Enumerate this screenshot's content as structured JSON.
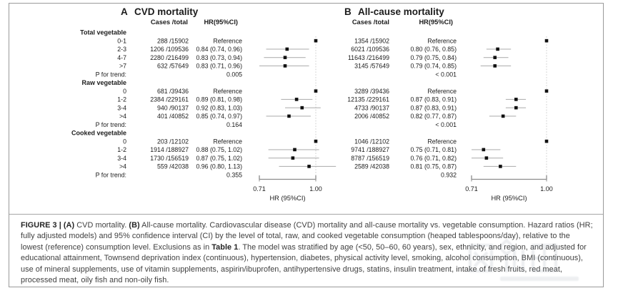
{
  "figure": {
    "caption": {
      "segments": [
        {
          "text": "FIGURE 3 | ",
          "bold": true
        },
        {
          "text": "(A)",
          "bold": true
        },
        {
          "text": " CVD mortality. ",
          "bold": false
        },
        {
          "text": "(B)",
          "bold": true
        },
        {
          "text": " All-cause mortality. Cardiovascular disease (CVD) mortality and all-cause mortality vs. vegetable consumption. Hazard ratios (HR; fully adjusted models) and 95% confidence interval (CI) by the level of total, raw, and cooked vegetable consumption (heaped tablespoons/day), relative to the lowest (reference) consumption level. Exclusions as in ",
          "bold": false
        },
        {
          "text": "Table 1",
          "bold": true
        },
        {
          "text": ". The model was stratified by age (<50, 50–60, 60 years), sex, ethnicity, and region, and adjusted for educational attainment, Townsend deprivation index (continuous), hypertension, diabetes, physical activity level, smoking, alcohol consumption, BMI (continuous), use of mineral supplements, use of vitamin supplements, aspirin/ibuprofen, antihypertensive drugs, statins, insulin treatment, intake of fresh fruits, red meat, processed meat, oily fish and non-oily fish.",
          "bold": false
        }
      ]
    },
    "watermark_name": "faint-logo-watermark"
  },
  "colors": {
    "text": "#1c1c1c",
    "marker": "#111111",
    "ci_line": "#b3b3b3",
    "ref_line": "#cccccc",
    "axis": "#8c8c8c",
    "border": "#9a9a9a"
  },
  "chart_data": [
    {
      "type": "forest",
      "panel_label": "A",
      "title": "CVD mortality",
      "columns": [
        "Cases /total",
        "HR(95%CI)"
      ],
      "show_row_labels": true,
      "p_row_label": "P for trend:",
      "axis": {
        "scale": "log",
        "min": 0.71,
        "max": 1.0,
        "ticks": [
          {
            "value": 0.71,
            "label": "0.71"
          },
          {
            "value": 1.0,
            "label": "1.00"
          }
        ],
        "label": "HR (95%CI)",
        "reference_line": 1.0
      },
      "groups": [
        {
          "name": "Total vegetable",
          "rows": [
            {
              "label": "0-1",
              "cases": "288 /15902",
              "hr_text": "Reference",
              "ref": true
            },
            {
              "label": "2-3",
              "cases": "1206 /109536",
              "hr_text": "0.84 (0.74, 0.96)",
              "hr": 0.84,
              "lo": 0.74,
              "hi": 0.96
            },
            {
              "label": "4-7",
              "cases": "2280 /216499",
              "hr_text": "0.83 (0.73, 0.94)",
              "hr": 0.83,
              "lo": 0.73,
              "hi": 0.94
            },
            {
              "label": ">7",
              "cases": "632 /57649",
              "hr_text": "0.83 (0.71, 0.96)",
              "hr": 0.83,
              "lo": 0.71,
              "hi": 0.96
            }
          ],
          "p_value": "0.005"
        },
        {
          "name": "Raw vegetable",
          "rows": [
            {
              "label": "0",
              "cases": "681 /39436",
              "hr_text": "Reference",
              "ref": true
            },
            {
              "label": "1-2",
              "cases": "2384 /229161",
              "hr_text": "0.89 (0.81, 0.98)",
              "hr": 0.89,
              "lo": 0.81,
              "hi": 0.98
            },
            {
              "label": "3-4",
              "cases": "940 /90137",
              "hr_text": "0.92 (0.83, 1.03)",
              "hr": 0.92,
              "lo": 0.83,
              "hi": 1.03
            },
            {
              "label": ">4",
              "cases": "401 /40852",
              "hr_text": "0.85 (0.74, 0.97)",
              "hr": 0.85,
              "lo": 0.74,
              "hi": 0.97
            }
          ],
          "p_value": "0.164"
        },
        {
          "name": "Cooked vegetable",
          "rows": [
            {
              "label": "0",
              "cases": "203 /12102",
              "hr_text": "Reference",
              "ref": true
            },
            {
              "label": "1-2",
              "cases": "1914 /188927",
              "hr_text": "0.88 (0.75, 1.02)",
              "hr": 0.88,
              "lo": 0.75,
              "hi": 1.02
            },
            {
              "label": "3-4",
              "cases": "1730 /156519",
              "hr_text": "0.87 (0.75, 1.02)",
              "hr": 0.87,
              "lo": 0.75,
              "hi": 1.02
            },
            {
              "label": ">4",
              "cases": "559 /42038",
              "hr_text": "0.96 (0.80, 1.13)",
              "hr": 0.96,
              "lo": 0.8,
              "hi": 1.13
            }
          ],
          "p_value": "0.355"
        }
      ]
    },
    {
      "type": "forest",
      "panel_label": "B",
      "title": "All-cause mortality",
      "columns": [
        "Cases /total",
        "HR(95%CI)"
      ],
      "show_row_labels": false,
      "p_row_label": "P for trend:",
      "axis": {
        "scale": "log",
        "min": 0.71,
        "max": 1.0,
        "ticks": [
          {
            "value": 0.71,
            "label": "0.71"
          },
          {
            "value": 1.0,
            "label": "1.00"
          }
        ],
        "label": "HR (95%CI)",
        "reference_line": 1.0
      },
      "groups": [
        {
          "name": "Total vegetable",
          "rows": [
            {
              "label": "0-1",
              "cases": "1354 /15902",
              "hr_text": "Reference",
              "ref": true
            },
            {
              "label": "2-3",
              "cases": "6021 /109536",
              "hr_text": "0.80 (0.76, 0.85)",
              "hr": 0.8,
              "lo": 0.76,
              "hi": 0.85
            },
            {
              "label": "4-7",
              "cases": "11643 /216499",
              "hr_text": "0.79 (0.75, 0.84)",
              "hr": 0.79,
              "lo": 0.75,
              "hi": 0.84
            },
            {
              "label": ">7",
              "cases": "3145 /57649",
              "hr_text": "0.79 (0.74, 0.85)",
              "hr": 0.79,
              "lo": 0.74,
              "hi": 0.85
            }
          ],
          "p_value": "< 0.001"
        },
        {
          "name": "Raw vegetable",
          "rows": [
            {
              "label": "0",
              "cases": "3289 /39436",
              "hr_text": "Reference",
              "ref": true
            },
            {
              "label": "1-2",
              "cases": "12135 /229161",
              "hr_text": "0.87 (0.83, 0.91)",
              "hr": 0.87,
              "lo": 0.83,
              "hi": 0.91
            },
            {
              "label": "3-4",
              "cases": "4733 /90137",
              "hr_text": "0.87 (0.83, 0.91)",
              "hr": 0.87,
              "lo": 0.83,
              "hi": 0.91
            },
            {
              "label": ">4",
              "cases": "2006 /40852",
              "hr_text": "0.82 (0.77, 0.87)",
              "hr": 0.82,
              "lo": 0.77,
              "hi": 0.87
            }
          ],
          "p_value": "< 0.001"
        },
        {
          "name": "Cooked vegetable",
          "rows": [
            {
              "label": "0",
              "cases": "1046 /12102",
              "hr_text": "Reference",
              "ref": true
            },
            {
              "label": "1-2",
              "cases": "9741 /188927",
              "hr_text": "0.75 (0.71, 0.81)",
              "hr": 0.75,
              "lo": 0.71,
              "hi": 0.81
            },
            {
              "label": "3-4",
              "cases": "8787 /156519",
              "hr_text": "0.76 (0.71, 0.82)",
              "hr": 0.76,
              "lo": 0.71,
              "hi": 0.82
            },
            {
              "label": ">4",
              "cases": "2589 /42038",
              "hr_text": "0.81 (0.75, 0.87)",
              "hr": 0.81,
              "lo": 0.75,
              "hi": 0.87
            }
          ],
          "p_value": "0.932"
        }
      ]
    }
  ]
}
